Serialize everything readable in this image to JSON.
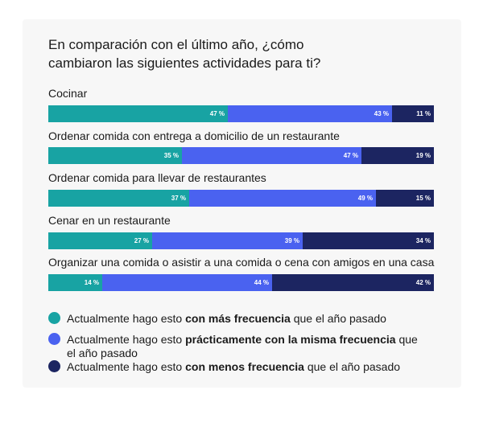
{
  "title_lines": [
    "En comparación con el último año, ¿cómo",
    "cambiaron las siguientes actividades para ti?"
  ],
  "colors": {
    "series_1": "#18a3a3",
    "series_2": "#4a62f0",
    "series_3": "#1c2561",
    "card_bg": "#f7f7f7"
  },
  "chart_data": {
    "type": "bar",
    "orientation": "horizontal",
    "stacked": true,
    "title": "En comparación con el último año, ¿cómo cambiaron las siguientes actividades para ti?",
    "categories": [
      "Cocinar",
      "Ordenar comida con entrega a domicilio de un restaurante",
      "Ordenar comida para llevar de restaurantes",
      "Cenar en un restaurante",
      "Organizar una comida o asistir a una comida o cena con amigos en una casa"
    ],
    "series": [
      {
        "name": "Actualmente hago esto con más frecuencia que el año pasado",
        "values": [
          47,
          35,
          37,
          27,
          14
        ]
      },
      {
        "name": "Actualmente hago esto prácticamente con la misma frecuencia que el año pasado",
        "values": [
          43,
          47,
          49,
          39,
          44
        ]
      },
      {
        "name": "Actualmente hago esto con menos frecuencia que el año pasado",
        "values": [
          11,
          19,
          15,
          34,
          42
        ]
      }
    ],
    "value_labels": [
      [
        "47 %",
        "43 %",
        "11 %"
      ],
      [
        "35 %",
        "47 %",
        "19 %"
      ],
      [
        "37 %",
        "49 %",
        "15 %"
      ],
      [
        "27 %",
        "39 %",
        "34 %"
      ],
      [
        "14 %",
        "44 %",
        "42 %"
      ]
    ],
    "legend_position": "bottom"
  },
  "legend": [
    {
      "prefix": "Actualmente hago esto ",
      "bold": "con más frecuencia",
      "suffix": " que el año pasado",
      "color_key": "series_1"
    },
    {
      "prefix": "Actualmente hago esto ",
      "bold": "prácticamente con la misma frecuencia",
      "suffix": " que el año pasado",
      "color_key": "series_2"
    },
    {
      "prefix": "Actualmente hago esto ",
      "bold": "con menos frecuencia",
      "suffix": " que el año pasado",
      "color_key": "series_3"
    }
  ]
}
